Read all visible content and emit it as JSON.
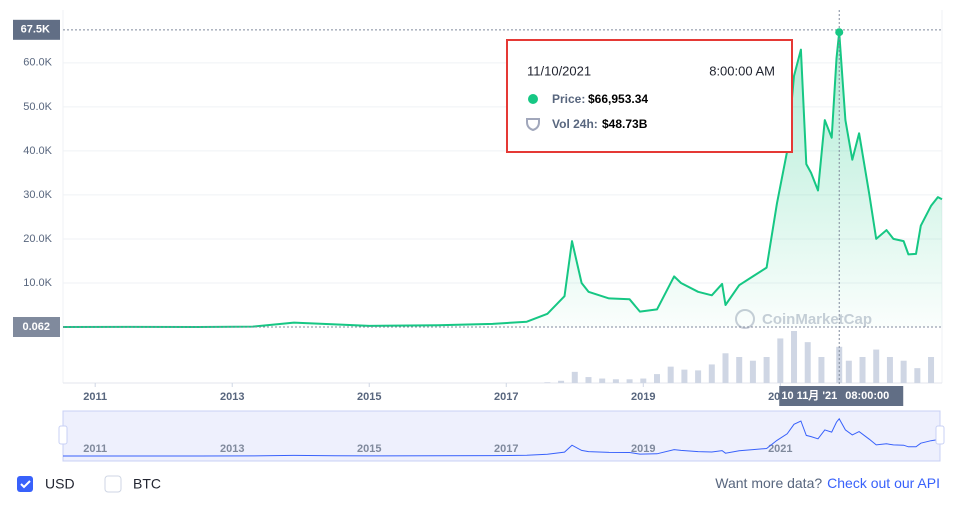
{
  "chart_data": {
    "type": "line",
    "x": [
      2010.53,
      2011.5,
      2012.5,
      2013.3,
      2013.9,
      2014.5,
      2015.0,
      2016.0,
      2016.8,
      2017.3,
      2017.6,
      2017.85,
      2017.96,
      2018.1,
      2018.2,
      2018.5,
      2018.8,
      2018.95,
      2019.2,
      2019.45,
      2019.55,
      2019.8,
      2020.0,
      2020.15,
      2020.2,
      2020.4,
      2020.6,
      2020.8,
      2020.95,
      2021.1,
      2021.2,
      2021.3,
      2021.38,
      2021.45,
      2021.55,
      2021.65,
      2021.75,
      2021.82,
      2021.86,
      2021.95,
      2022.05,
      2022.15,
      2022.3,
      2022.4,
      2022.55,
      2022.65,
      2022.8,
      2022.87,
      2022.98,
      2023.05,
      2023.2,
      2023.3,
      2023.36
    ],
    "values": [
      0.062,
      15,
      8,
      100,
      1000,
      600,
      250,
      400,
      700,
      1200,
      3000,
      7000,
      19500,
      10000,
      8000,
      6500,
      6300,
      3500,
      4000,
      11500,
      10000,
      8000,
      7200,
      9800,
      5000,
      9500,
      11500,
      13500,
      28000,
      40000,
      57000,
      63000,
      37000,
      35000,
      31000,
      47000,
      43000,
      61000,
      66953.34,
      47000,
      38000,
      44000,
      30000,
      20000,
      22000,
      20000,
      19500,
      16500,
      16600,
      23000,
      27500,
      29500,
      29000
    ],
    "color": "#16c784",
    "xlim": [
      2010.53,
      2023.36
    ],
    "xticks": [
      2011,
      2013,
      2015,
      2017,
      2019,
      2021
    ],
    "ylim": [
      0,
      72000
    ],
    "yticks": [
      {
        "value": 10000,
        "label": "10.0K"
      },
      {
        "value": 20000,
        "label": "20.0K"
      },
      {
        "value": 30000,
        "label": "30.0K"
      },
      {
        "value": 40000,
        "label": "40.0K"
      },
      {
        "value": 50000,
        "label": "50.0K"
      },
      {
        "value": 60000,
        "label": "60.0K"
      }
    ],
    "grid": true,
    "crosshair": {
      "x": 2021.86,
      "y": {
        "value": 67500,
        "label": "67.5K"
      },
      "baseline": {
        "value": 0.062,
        "label": "0.062"
      },
      "x_label": [
        "10 11月 '21",
        "08:00:00"
      ]
    },
    "volume": {
      "color": "#cfd6e4",
      "x": [
        2017.6,
        2017.8,
        2018.0,
        2018.2,
        2018.4,
        2018.6,
        2018.8,
        2019.0,
        2019.2,
        2019.4,
        2019.6,
        2019.8,
        2020.0,
        2020.2,
        2020.4,
        2020.6,
        2020.8,
        2021.0,
        2021.2,
        2021.4,
        2021.6,
        2021.86,
        2022.0,
        2022.2,
        2022.4,
        2022.6,
        2022.8,
        2023.0,
        2023.2
      ],
      "values": [
        1,
        3,
        15,
        8,
        6,
        5,
        5,
        6,
        12,
        22,
        18,
        17,
        25,
        40,
        35,
        30,
        35,
        60,
        70,
        55,
        35,
        48.73,
        30,
        35,
        45,
        35,
        30,
        20,
        35
      ]
    },
    "watermark": "CoinMarketCap"
  },
  "tooltip": {
    "date": "11/10/2021",
    "time": "8:00:00 AM",
    "price_label": "Price:",
    "price": "$66,953.34",
    "volume_label": "Vol 24h:",
    "volume": "$48.73B"
  },
  "controls": {
    "usd": "USD",
    "btc": "BTC"
  },
  "footer": {
    "prompt": "Want more data?",
    "link": "Check out our API"
  }
}
